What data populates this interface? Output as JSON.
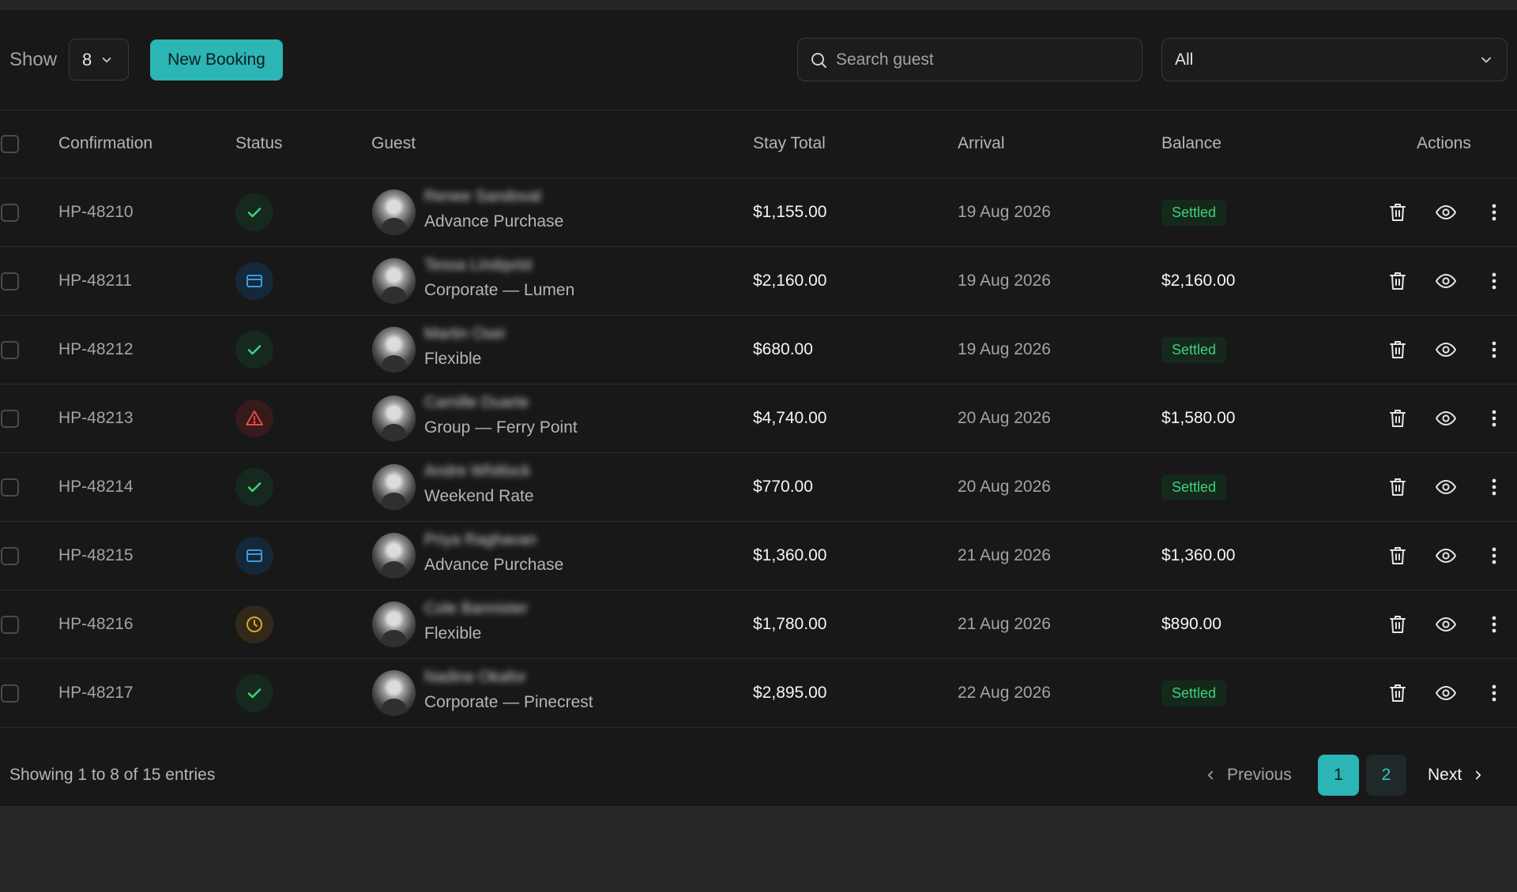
{
  "toolbar": {
    "show_label": "Show",
    "page_size": "8",
    "new_booking_label": "New Booking",
    "search_placeholder": "Search guest",
    "filter_value": "All"
  },
  "table": {
    "columns": [
      "Confirmation",
      "Status",
      "Guest",
      "Stay Total",
      "Arrival",
      "Balance",
      "Actions"
    ],
    "rows": [
      {
        "confirmation": "HP-48210",
        "status": "paid",
        "guest_name": "Renee Sandoval",
        "plan": "Advance Purchase",
        "stay_total": "$1,155.00",
        "arrival": "19 Aug 2026",
        "balance": "Settled"
      },
      {
        "confirmation": "HP-48211",
        "status": "card",
        "guest_name": "Tessa Lindqvist",
        "plan": "Corporate — Lumen",
        "stay_total": "$2,160.00",
        "arrival": "19 Aug 2026",
        "balance": "$2,160.00"
      },
      {
        "confirmation": "HP-48212",
        "status": "paid",
        "guest_name": "Martin Osei",
        "plan": "Flexible",
        "stay_total": "$680.00",
        "arrival": "19 Aug 2026",
        "balance": "Settled"
      },
      {
        "confirmation": "HP-48213",
        "status": "warning",
        "guest_name": "Camille Duarte",
        "plan": "Group — Ferry Point",
        "stay_total": "$4,740.00",
        "arrival": "20 Aug 2026",
        "balance": "$1,580.00"
      },
      {
        "confirmation": "HP-48214",
        "status": "paid",
        "guest_name": "Andre Whitlock",
        "plan": "Weekend Rate",
        "stay_total": "$770.00",
        "arrival": "20 Aug 2026",
        "balance": "Settled"
      },
      {
        "confirmation": "HP-48215",
        "status": "card",
        "guest_name": "Priya Raghavan",
        "plan": "Advance Purchase",
        "stay_total": "$1,360.00",
        "arrival": "21 Aug 2026",
        "balance": "$1,360.00"
      },
      {
        "confirmation": "HP-48216",
        "status": "pending",
        "guest_name": "Cole Bannister",
        "plan": "Flexible",
        "stay_total": "$1,780.00",
        "arrival": "21 Aug 2026",
        "balance": "$890.00"
      },
      {
        "confirmation": "HP-48217",
        "status": "paid",
        "guest_name": "Nadine Okafor",
        "plan": "Corporate — Pinecrest",
        "stay_total": "$2,895.00",
        "arrival": "22 Aug 2026",
        "balance": "Settled"
      }
    ]
  },
  "footer": {
    "entries_text": "Showing 1 to 8 of 15 entries",
    "previous_label": "Previous",
    "pages": [
      "1",
      "2"
    ],
    "next_label": "Next"
  },
  "colors": {
    "accent": "#2bb5b5",
    "settled": "#3fd07a",
    "status_paid": "#3fd07a",
    "status_card": "#3b9be0",
    "status_warning": "#ef4444",
    "status_pending": "#e0a526"
  }
}
